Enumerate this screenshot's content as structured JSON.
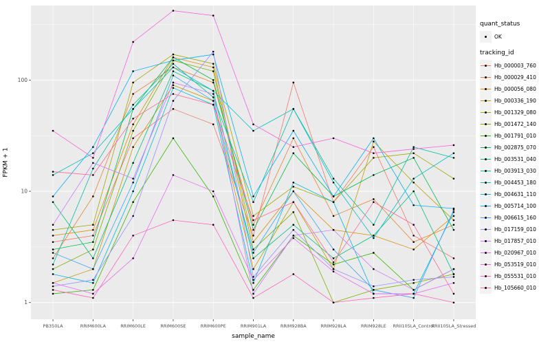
{
  "figure": {
    "xlabel": "sample_name",
    "ylabel": "FPKM + 1",
    "legend": {
      "quant_status_title": "quant_status",
      "ok_label": "OK",
      "tracking_title": "tracking_id"
    },
    "colors": {
      "panel_bg": "#EBEBEB",
      "grid_major": "#FFFFFF",
      "grid_minor": "#FFFFFF",
      "axis_text": "#4D4D4D",
      "tick_mark": "#333333",
      "point": "#000000",
      "legend_key_bg": "#F2F2F2"
    }
  },
  "chart_data": {
    "type": "line",
    "title": "",
    "xlabel": "sample_name",
    "ylabel": "FPKM + 1",
    "y_scale": "log10",
    "y_ticks": [
      1,
      10,
      100
    ],
    "y_minor_ticks": [
      3.162,
      31.62,
      316.2
    ],
    "ylim_log10": [
      -0.15,
      2.67
    ],
    "grid": true,
    "legend_position": "right",
    "x_categories": [
      "PB350LA",
      "RRIM600LA",
      "RRIM600LE",
      "RRIM600SE",
      "RRIM600PE",
      "RRIM901LA",
      "RRIM928BA",
      "RRIM928LA",
      "RRIM928LE",
      "RRII105LA_Control",
      "RRII105LA_Stressed"
    ],
    "quant_status": "OK",
    "series": [
      {
        "name": "Hb_000003_760",
        "color": "#F8766D",
        "values": [
          3.5,
          4,
          30,
          55,
          40,
          4,
          95,
          8,
          25,
          4,
          2.5
        ]
      },
      {
        "name": "Hb_000029_410",
        "color": "#EA8331",
        "values": [
          2.5,
          9,
          75,
          130,
          95,
          5,
          30,
          6,
          8.5,
          3.5,
          5
        ]
      },
      {
        "name": "Hb_000056_080",
        "color": "#D89000",
        "values": [
          4,
          4.5,
          40,
          160,
          130,
          3.5,
          10,
          4.5,
          4,
          3,
          6
        ]
      },
      {
        "name": "Hb_000336_190",
        "color": "#C09B00",
        "values": [
          1.5,
          2,
          25,
          90,
          65,
          2,
          8,
          2,
          28,
          12,
          5.5
        ]
      },
      {
        "name": "Hb_001329_080",
        "color": "#A3A500",
        "values": [
          4.5,
          5,
          95,
          170,
          140,
          6,
          11,
          8,
          20,
          22,
          13
        ]
      },
      {
        "name": "Hb_001472_140",
        "color": "#7CAE00",
        "values": [
          2,
          3,
          35,
          150,
          120,
          3,
          6.5,
          1,
          1.3,
          1.5,
          1.8
        ]
      },
      {
        "name": "Hb_001791_010",
        "color": "#39B600",
        "values": [
          1.2,
          1.3,
          8,
          30,
          9,
          1.3,
          4,
          2.2,
          2.8,
          1.3,
          2
        ]
      },
      {
        "name": "Hb_002875_070",
        "color": "#00BB4E",
        "values": [
          3,
          3.5,
          55,
          160,
          100,
          4.5,
          22,
          9,
          14,
          20,
          4.5
        ]
      },
      {
        "name": "Hb_003531_040",
        "color": "#00BF7D",
        "values": [
          8,
          2.5,
          18,
          120,
          80,
          2.5,
          5,
          2.5,
          4,
          10,
          1.8
        ]
      },
      {
        "name": "Hb_003913_030",
        "color": "#00C1A3",
        "values": [
          2.2,
          16,
          60,
          140,
          70,
          8,
          55,
          13,
          5,
          25,
          20
        ]
      },
      {
        "name": "Hb_004453_180",
        "color": "#00BFC4",
        "values": [
          14,
          22,
          55,
          130,
          80,
          35,
          55,
          12,
          3.8,
          13,
          22
        ]
      },
      {
        "name": "Hb_004631_110",
        "color": "#00BAE0",
        "values": [
          1.8,
          1.5,
          10,
          85,
          60,
          1.5,
          12,
          8,
          1.2,
          1.2,
          6.5
        ]
      },
      {
        "name": "Hb_005714_100",
        "color": "#00B0F6",
        "values": [
          9,
          25,
          120,
          150,
          170,
          9,
          35,
          9,
          30,
          7.5,
          7
        ]
      },
      {
        "name": "Hb_006615_160",
        "color": "#35A2FF",
        "values": [
          2.8,
          2,
          12,
          110,
          65,
          2.8,
          10,
          3,
          1.3,
          1.1,
          6.8
        ]
      },
      {
        "name": "Hb_017159_010",
        "color": "#9590FF",
        "values": [
          1.4,
          1.6,
          6,
          65,
          180,
          1.7,
          4.5,
          2,
          1.4,
          1.6,
          1.7
        ]
      },
      {
        "name": "Hb_017857_010",
        "color": "#C77CFF",
        "values": [
          5,
          18,
          13,
          95,
          75,
          1.2,
          4,
          4.5,
          2,
          1.3,
          2
        ]
      },
      {
        "name": "Hb_020967_010",
        "color": "#E76BF3",
        "values": [
          1.5,
          1.2,
          2.5,
          14,
          10,
          1.6,
          3.8,
          1.9,
          1.2,
          1.2,
          1.5
        ]
      },
      {
        "name": "Hb_053519_010",
        "color": "#FA62DB",
        "values": [
          35,
          20,
          220,
          420,
          380,
          40,
          25,
          30,
          22,
          24,
          26
        ]
      },
      {
        "name": "Hb_055531_010",
        "color": "#FF62BC",
        "values": [
          1.3,
          1.1,
          4,
          5.5,
          5,
          1.1,
          1.8,
          1,
          1.1,
          1.2,
          1
        ]
      },
      {
        "name": "Hb_105660_010",
        "color": "#FF6A98",
        "values": [
          15,
          14,
          45,
          75,
          60,
          5.5,
          8,
          2.3,
          8,
          5,
          1.2
        ]
      }
    ]
  }
}
